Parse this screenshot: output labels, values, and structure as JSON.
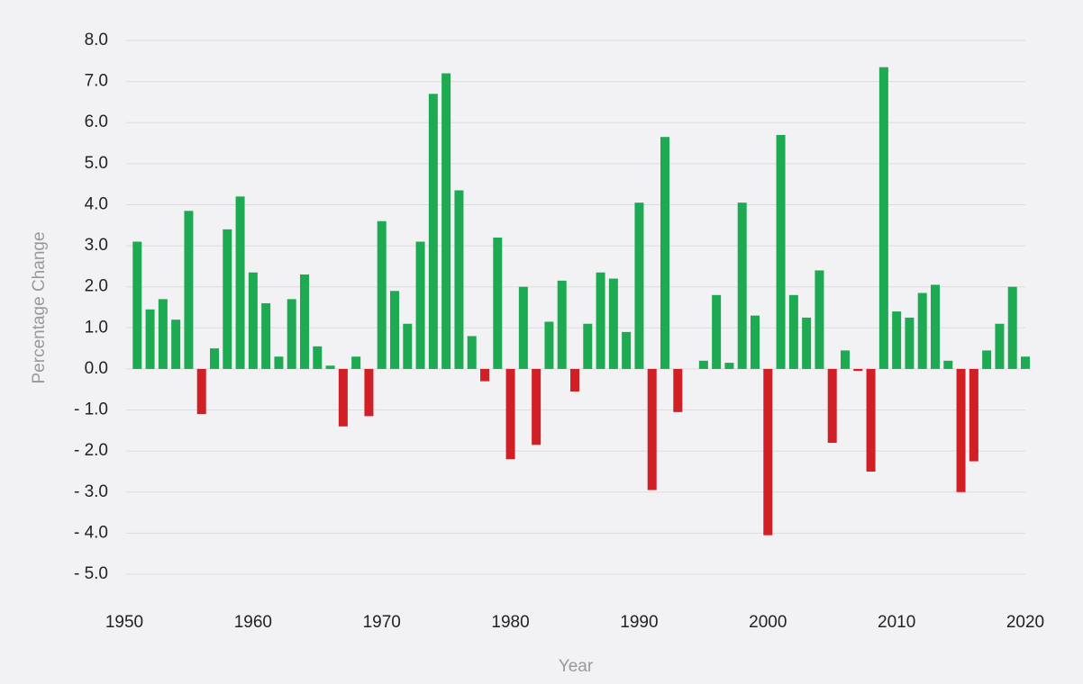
{
  "chart_data": {
    "type": "bar",
    "x_label": "Year",
    "y_label": "Percentage Change",
    "x": [
      1951,
      1952,
      1953,
      1954,
      1955,
      1956,
      1957,
      1958,
      1959,
      1960,
      1961,
      1962,
      1963,
      1964,
      1965,
      1966,
      1967,
      1968,
      1969,
      1970,
      1971,
      1972,
      1973,
      1974,
      1975,
      1976,
      1977,
      1978,
      1979,
      1980,
      1981,
      1982,
      1983,
      1984,
      1985,
      1986,
      1987,
      1988,
      1989,
      1990,
      1991,
      1992,
      1993,
      1994,
      1995,
      1996,
      1997,
      1998,
      1999,
      2000,
      2001,
      2002,
      2003,
      2004,
      2005,
      2006,
      2007,
      2008,
      2009,
      2010,
      2011,
      2012,
      2013,
      2014,
      2015,
      2016,
      2017,
      2018,
      2019,
      2020
    ],
    "values": [
      3.1,
      1.45,
      1.7,
      1.2,
      3.85,
      -1.1,
      0.5,
      3.4,
      4.2,
      2.35,
      1.6,
      0.3,
      1.7,
      2.3,
      0.55,
      0.08,
      -1.4,
      0.3,
      -1.15,
      3.6,
      1.9,
      1.1,
      3.1,
      6.7,
      7.2,
      4.35,
      0.8,
      -0.3,
      3.2,
      -2.2,
      2.0,
      -1.85,
      1.15,
      2.15,
      -0.55,
      1.1,
      2.35,
      2.2,
      0.9,
      4.05,
      -2.95,
      5.65,
      -1.05,
      0,
      0.2,
      1.8,
      0.15,
      4.05,
      1.3,
      -4.05,
      5.7,
      1.8,
      1.25,
      2.4,
      -1.8,
      0.45,
      -0.05,
      -2.5,
      7.35,
      1.4,
      1.25,
      1.85,
      2.05,
      0.2,
      -3.0,
      -2.25,
      0.45,
      1.1,
      2.0,
      0.3
    ],
    "positive_color": "#1daa52",
    "negative_color": "#d11f26",
    "xlim": [
      1950,
      2020
    ],
    "xticks": [
      1950,
      1960,
      1970,
      1980,
      1990,
      2000,
      2010,
      2020
    ],
    "ylim": [
      -5,
      8
    ],
    "yticks": [
      {
        "value": -5,
        "label": "- 5.0"
      },
      {
        "value": -4,
        "label": "- 4.0"
      },
      {
        "value": -3,
        "label": "- 3.0"
      },
      {
        "value": -2,
        "label": "- 2.0"
      },
      {
        "value": -1,
        "label": "- 1.0"
      },
      {
        "value": 0,
        "label": "0.0"
      },
      {
        "value": 1,
        "label": "1.0"
      },
      {
        "value": 2,
        "label": "2.0"
      },
      {
        "value": 3,
        "label": "3.0"
      },
      {
        "value": 4,
        "label": "4.0"
      },
      {
        "value": 5,
        "label": "5.0"
      },
      {
        "value": 6,
        "label": "6.0"
      },
      {
        "value": 7,
        "label": "7.0"
      },
      {
        "value": 8,
        "label": "8.0"
      }
    ],
    "grid": true
  }
}
